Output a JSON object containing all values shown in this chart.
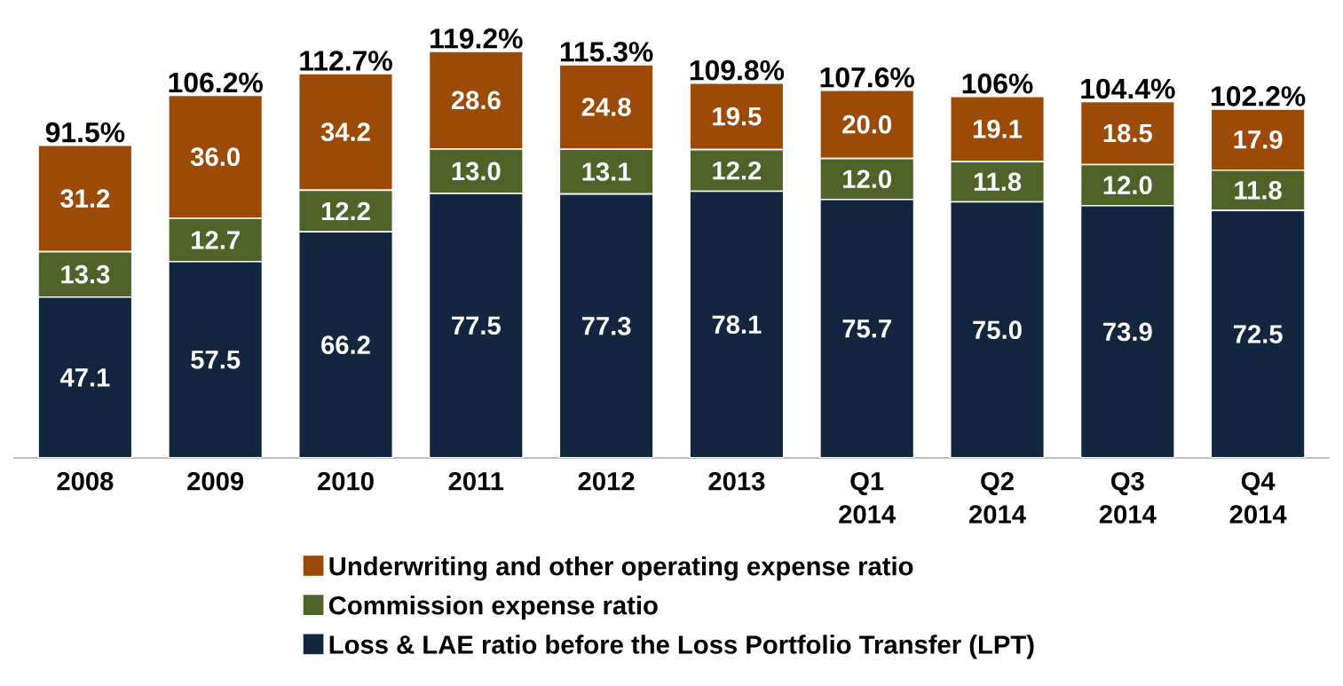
{
  "chart_data": {
    "type": "bar",
    "stacked": true,
    "legend": "bottom",
    "categories": [
      "2008",
      "2009",
      "2010",
      "2011",
      "2012",
      "2013",
      "Q1 2014",
      "Q2 2014",
      "Q3 2014",
      "Q4 2014"
    ],
    "series": [
      {
        "name": "Loss & LAE ratio before the Loss Portfolio Transfer (LPT)",
        "color": "#132640",
        "values": [
          47.1,
          57.5,
          66.2,
          77.5,
          77.3,
          78.1,
          75.7,
          75.0,
          73.9,
          72.5
        ],
        "value_labels": [
          "47.1",
          "57.5",
          "66.2",
          "77.5",
          "77.3",
          "78.1",
          "75.7",
          "75.0",
          "73.9",
          "72.5"
        ]
      },
      {
        "name": "Commission expense ratio",
        "color": "#4f6228",
        "values": [
          13.3,
          12.7,
          12.2,
          13.0,
          13.1,
          12.2,
          12.0,
          11.8,
          12.0,
          11.8
        ],
        "value_labels": [
          "13.3",
          "12.7",
          "12.2",
          "13.0",
          "13.1",
          "12.2",
          "12.0",
          "11.8",
          "12.0",
          "11.8"
        ]
      },
      {
        "name": "Underwriting and other operating expense ratio",
        "color": "#9c4a08",
        "values": [
          31.2,
          36.0,
          34.2,
          28.6,
          24.8,
          19.5,
          20.0,
          19.1,
          18.5,
          17.9
        ],
        "value_labels": [
          "31.2",
          "36.0",
          "34.2",
          "28.6",
          "24.8",
          "19.5",
          "20.0",
          "19.1",
          "18.5",
          "17.9"
        ]
      }
    ],
    "totals": [
      "91.5%",
      "106.2%",
      "112.7%",
      "119.2%",
      "115.3%",
      "109.8%",
      "107.6%",
      "106%",
      "104.4%",
      "102.2%"
    ]
  }
}
